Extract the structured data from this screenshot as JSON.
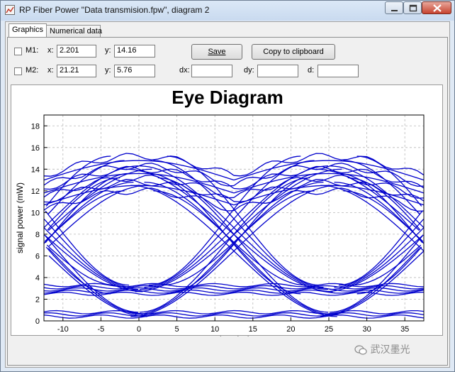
{
  "window": {
    "title": "RP Fiber Power \"Data transmision.fpw\", diagram 2"
  },
  "tabs": [
    {
      "label": "Graphics",
      "active": true
    },
    {
      "label": "Numerical data",
      "active": false
    }
  ],
  "markers": {
    "m1": {
      "label": "M1:",
      "x_label": "x:",
      "x_value": "2.201",
      "y_label": "y:",
      "y_value": "14.16",
      "checked": false
    },
    "m2": {
      "label": "M2:",
      "x_label": "x:",
      "x_value": "21.21",
      "y_label": "y:",
      "y_value": "5.76",
      "checked": false
    }
  },
  "deltas": {
    "dx_label": "dx:",
    "dx_value": "",
    "dy_label": "dy:",
    "dy_value": "",
    "d_label": "d:",
    "d_value": ""
  },
  "buttons": {
    "save_label": "Save",
    "copy_label": "Copy to clipboard"
  },
  "chart_data": {
    "type": "line",
    "title": "Eye Diagram",
    "xlabel": "time (ps)",
    "ylabel": "signal power (mW)",
    "xlim": [
      -12.5,
      37.5
    ],
    "ylim": [
      0,
      19
    ],
    "xticks": [
      -10,
      -5,
      0,
      5,
      10,
      15,
      20,
      25,
      30,
      35
    ],
    "yticks": [
      0,
      2,
      4,
      6,
      8,
      10,
      12,
      14,
      16,
      18
    ],
    "grid": true,
    "color": "#0000cc",
    "eye_period_ps": 25,
    "high_levels": [
      15.2,
      14.8,
      14.3,
      14.0,
      13.6,
      13.2,
      12.8,
      12.5,
      12.0
    ],
    "low_levels": [
      3.3,
      3.1,
      2.9,
      2.7,
      2.5,
      0.8,
      0.6,
      0.4
    ],
    "crossing_times": [
      -12.5,
      12.5,
      37.5
    ]
  },
  "watermark": "武汉墨光"
}
